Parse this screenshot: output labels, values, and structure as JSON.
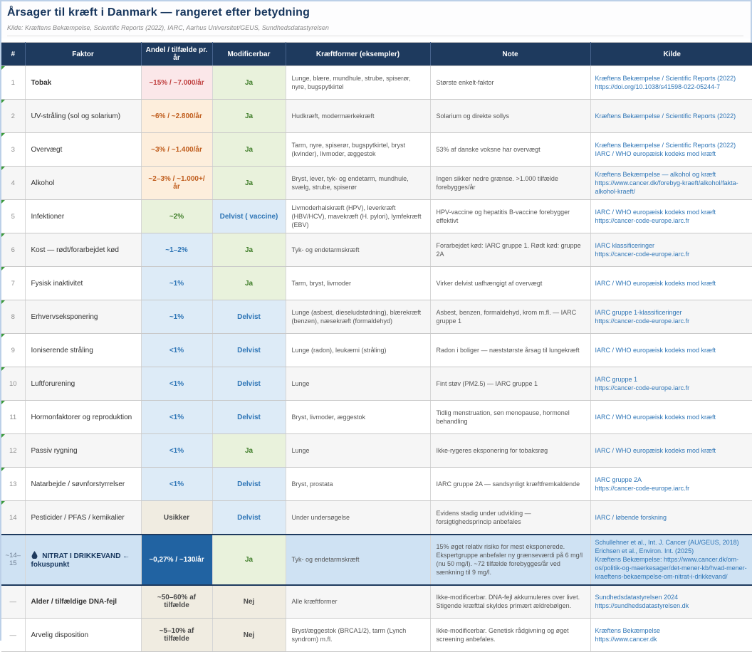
{
  "colors": {
    "navy": "#1e3a5e",
    "titleText": "#17365d",
    "link": "#2e75b6",
    "redBg": "#fbe7e9",
    "redText": "#c04040",
    "orangeBg": "#fdeedc",
    "orangeText": "#c05d1d",
    "greenBg": "#e9f2dc",
    "greenText": "#3e7d28",
    "blueBg": "#ddebf7",
    "blueText": "#2e75b6",
    "neutralBg": "#f0ece1",
    "neutralText": "#4a4a4a",
    "darkBlueBg": "#2163a2",
    "darkBlueText": "#ffffff",
    "highlightBg": "#cfe2f3",
    "stripe": "#f6f6f6",
    "gridline": "#c8c8c8",
    "frame": "#bcd0e8",
    "marker": "#3a9a3a",
    "rankText": "#8f8f8f",
    "bodyText": "#555555",
    "factorText": "#333333"
  },
  "header": {
    "title": "Årsager til kræft i Danmark — rangeret efter betydning",
    "subtitle": "Kilde: Kræftens Bekæmpelse, Scientific Reports (2022), IARC, Aarhus Universitet/GEUS, Sundhedsdatastyrelsen"
  },
  "table": {
    "columns": [
      "#",
      "Faktor",
      "Andel / tilfælde pr. år",
      "Modificerbar",
      "Kræftformer (eksempler)",
      "Note",
      "Kilde"
    ],
    "rows": [
      {
        "rank": "1",
        "marker": true,
        "factor": "Tobak",
        "factor_bold": true,
        "share": "~15% / ~7.000/år",
        "share_style": "red",
        "modifiable": "Ja",
        "modifiable_style": "green",
        "cancer_types": "Lunge, blære, mundhule, strube, spiserør, nyre, bugspytkirtel",
        "note": "Største enkelt-faktor",
        "sources": [
          "Kræftens Bekæmpelse / Scientific Reports (2022)",
          "https://doi.org/10.1038/s41598-022-05244-7"
        ],
        "highlight": false
      },
      {
        "rank": "2",
        "marker": true,
        "factor": "UV-stråling (sol og solarium)",
        "factor_bold": false,
        "share": "~6% / ~2.800/år",
        "share_style": "orange",
        "modifiable": "Ja",
        "modifiable_style": "green",
        "cancer_types": "Hudkræft, modermærkekræft",
        "note": "Solarium og direkte sollys",
        "sources": [
          "Kræftens Bekæmpelse / Scientific Reports (2022)"
        ],
        "highlight": false
      },
      {
        "rank": "3",
        "marker": true,
        "factor": "Overvægt",
        "factor_bold": false,
        "share": "~3% / ~1.400/år",
        "share_style": "orange",
        "modifiable": "Ja",
        "modifiable_style": "green",
        "cancer_types": "Tarm, nyre, spiserør, bugspytkirtel, bryst (kvinder), livmoder, æggestok",
        "note": "53% af danske voksne har overvægt",
        "sources": [
          "Kræftens Bekæmpelse / Scientific Reports (2022)",
          "IARC / WHO europæisk kodeks mod kræft"
        ],
        "highlight": false
      },
      {
        "rank": "4",
        "marker": true,
        "factor": "Alkohol",
        "factor_bold": false,
        "share": "~2–3% / ~1.000+/år",
        "share_style": "orange",
        "modifiable": "Ja",
        "modifiable_style": "green",
        "cancer_types": "Bryst, lever, tyk- og endetarm, mundhule, svælg, strube, spiserør",
        "note": "Ingen sikker nedre grænse. >1.000 tilfælde forebygges/år",
        "sources": [
          "Kræftens Bekæmpelse — alkohol og kræft",
          "https://www.cancer.dk/forebyg-kraeft/alkohol/fakta-alkohol-kraeft/"
        ],
        "highlight": false
      },
      {
        "rank": "5",
        "marker": true,
        "factor": "Infektioner",
        "factor_bold": false,
        "share": "~2%",
        "share_style": "green",
        "modifiable": "Delvist ( vaccine)",
        "modifiable_style": "blue",
        "cancer_types": "Livmoderhalskræft (HPV), leverkræft (HBV/HCV), mavekræft (H. pylori), lymfekræft (EBV)",
        "note": "HPV-vaccine og hepatitis B-vaccine forebygger effektivt",
        "sources": [
          "IARC / WHO europæisk kodeks mod kræft",
          "https://cancer-code-europe.iarc.fr"
        ],
        "highlight": false
      },
      {
        "rank": "6",
        "marker": true,
        "factor": "Kost — rødt/forarbejdet kød",
        "factor_bold": false,
        "share": "~1–2%",
        "share_style": "blue",
        "modifiable": "Ja",
        "modifiable_style": "green",
        "cancer_types": "Tyk- og endetarmskræft",
        "note": "Forarbejdet kød: IARC gruppe 1. Rødt kød: gruppe 2A",
        "sources": [
          "IARC klassificeringer",
          "https://cancer-code-europe.iarc.fr"
        ],
        "highlight": false
      },
      {
        "rank": "7",
        "marker": true,
        "factor": "Fysisk inaktivitet",
        "factor_bold": false,
        "share": "~1%",
        "share_style": "blue",
        "modifiable": "Ja",
        "modifiable_style": "green",
        "cancer_types": "Tarm, bryst, livmoder",
        "note": "Virker delvist uafhængigt af overvægt",
        "sources": [
          "IARC / WHO europæisk kodeks mod kræft"
        ],
        "highlight": false
      },
      {
        "rank": "8",
        "marker": true,
        "factor": "Erhvervseksponering",
        "factor_bold": false,
        "share": "~1%",
        "share_style": "blue",
        "modifiable": "Delvist",
        "modifiable_style": "blue",
        "cancer_types": "Lunge (asbest, dieseludstødning), blærekræft (benzen), næsekræft (formaldehyd)",
        "note": "Asbest, benzen, formaldehyd, krom m.fl. — IARC gruppe 1",
        "sources": [
          "IARC gruppe 1-klassificeringer",
          "https://cancer-code-europe.iarc.fr"
        ],
        "highlight": false
      },
      {
        "rank": "9",
        "marker": true,
        "factor": "Ioniserende stråling",
        "factor_bold": false,
        "share": "<1%",
        "share_style": "blue",
        "modifiable": "Delvist",
        "modifiable_style": "blue",
        "cancer_types": "Lunge (radon), leukæmi (stråling)",
        "note": "Radon i boliger — næststørste årsag til lungekræft",
        "sources": [
          "IARC / WHO europæisk kodeks mod kræft"
        ],
        "highlight": false
      },
      {
        "rank": "10",
        "marker": true,
        "factor": "Luftforurening",
        "factor_bold": false,
        "share": "<1%",
        "share_style": "blue",
        "modifiable": "Delvist",
        "modifiable_style": "blue",
        "cancer_types": "Lunge",
        "note": "Fint støv (PM2.5) — IARC gruppe 1",
        "sources": [
          "IARC gruppe 1",
          "https://cancer-code-europe.iarc.fr"
        ],
        "highlight": false
      },
      {
        "rank": "11",
        "marker": true,
        "factor": "Hormonfaktorer og reproduktion",
        "factor_bold": false,
        "share": "<1%",
        "share_style": "blue",
        "modifiable": "Delvist",
        "modifiable_style": "blue",
        "cancer_types": "Bryst, livmoder, æggestok",
        "note": "Tidlig menstruation, sen menopause, hormonel behandling",
        "sources": [
          "IARC / WHO europæisk kodeks mod kræft"
        ],
        "highlight": false
      },
      {
        "rank": "12",
        "marker": true,
        "factor": "Passiv rygning",
        "factor_bold": false,
        "share": "<1%",
        "share_style": "blue",
        "modifiable": "Ja",
        "modifiable_style": "green",
        "cancer_types": "Lunge",
        "note": "Ikke-rygeres eksponering for tobaksrøg",
        "sources": [
          "IARC / WHO europæisk kodeks mod kræft"
        ],
        "highlight": false
      },
      {
        "rank": "13",
        "marker": true,
        "factor": "Natarbejde / søvnforstyrrelser",
        "factor_bold": false,
        "share": "<1%",
        "share_style": "blue",
        "modifiable": "Delvist",
        "modifiable_style": "blue",
        "cancer_types": "Bryst, prostata",
        "note": "IARC gruppe 2A — sandsynligt kræftfremkaldende",
        "sources": [
          "IARC gruppe 2A",
          "https://cancer-code-europe.iarc.fr"
        ],
        "highlight": false
      },
      {
        "rank": "14",
        "marker": true,
        "factor": "Pesticider / PFAS / kemikalier",
        "factor_bold": false,
        "share": "Usikker",
        "share_style": "neutral",
        "modifiable": "Delvist",
        "modifiable_style": "blue",
        "cancer_types": "Under undersøgelse",
        "note": "Evidens stadig under udvikling — forsigtighedsprincip anbefales",
        "sources": [
          "IARC / løbende forskning"
        ],
        "highlight": false
      },
      {
        "rank": "~14–15",
        "marker": false,
        "factor": "NITRAT I DRIKKEVAND ← fokuspunkt",
        "factor_bold": true,
        "icon": "water-drop",
        "share": "~0,27% / ~130/år",
        "share_style": "darkblue",
        "modifiable": "Ja",
        "modifiable_style": "green",
        "cancer_types": "Tyk- og endetarmskræft",
        "note": "15% øget relativ risiko for mest eksponerede. Ekspertgruppe anbefaler ny grænseværdi på 6 mg/l (nu 50 mg/l). ~72 tilfælde forebygges/år ved sænkning til 9 mg/l.",
        "sources": [
          "Schullehner et al., Int. J. Cancer (AU/GEUS, 2018)",
          "Erichsen et al., Environ. Int. (2025)",
          "Kræftens Bekæmpelse: https://www.cancer.dk/om-os/politik-og-maerkesager/det-mener-kb/hvad-mener-kraeftens-bekaempelse-om-nitrat-i-drikkevand/"
        ],
        "highlight": true
      },
      {
        "rank": "—",
        "marker": false,
        "factor": "Alder / tilfældige DNA-fejl",
        "factor_bold": true,
        "share": "~50–60% af tilfælde",
        "share_style": "neutral",
        "modifiable": "Nej",
        "modifiable_style": "neutral",
        "cancer_types": "Alle kræftformer",
        "note": "Ikke-modificerbar. DNA-fejl akkumuleres over livet. Stigende kræfttal skyldes primært ældrebølgen.",
        "sources": [
          "Sundhedsdatastyrelsen 2024",
          "https://sundhedsdatastyrelsen.dk"
        ],
        "highlight": false
      },
      {
        "rank": "—",
        "marker": false,
        "factor": "Arvelig disposition",
        "factor_bold": false,
        "share": "~5–10% af tilfælde",
        "share_style": "neutral",
        "modifiable": "Nej",
        "modifiable_style": "neutral",
        "cancer_types": "Bryst/æggestok (BRCA1/2), tarm (Lynch syndrom) m.fl.",
        "note": "Ikke-modificerbar. Genetisk rådgivning og øget screening anbefales.",
        "sources": [
          "Kræftens Bekæmpelse",
          "https://www.cancer.dk"
        ],
        "highlight": false
      }
    ]
  }
}
